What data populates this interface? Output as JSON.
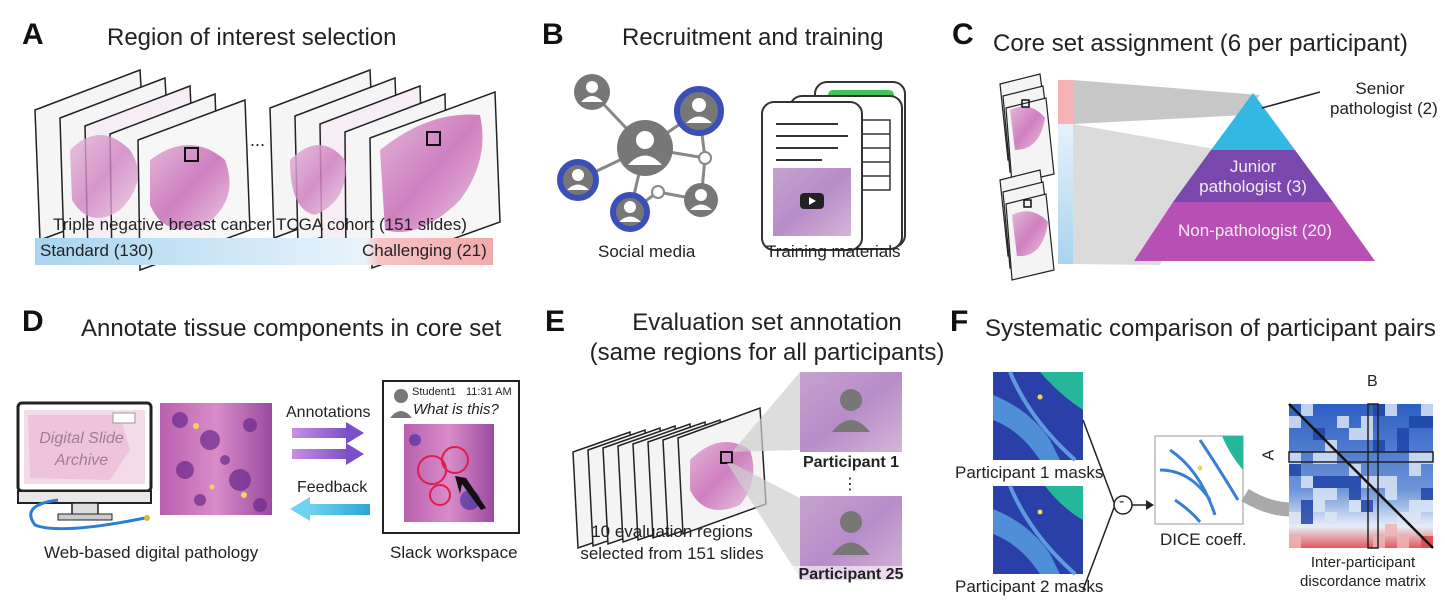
{
  "panelA": {
    "letter": "A",
    "title": "Region of interest selection",
    "ellipsis": "...",
    "cohort": "Triple negative breast cancer TCGA cohort (151 slides)",
    "standard": "Standard (130)",
    "challenging": "Challenging (21)"
  },
  "panelB": {
    "letter": "B",
    "title": "Recruitment and training",
    "social": "Social media",
    "training": "Training materials"
  },
  "panelC": {
    "letter": "C",
    "title": "Core set assignment (6 per participant)",
    "senior": [
      "Senior",
      "pathologist (2)"
    ],
    "junior": [
      "Junior",
      "pathologist (3)"
    ],
    "nonpath": "Non-pathologist (20)"
  },
  "panelD": {
    "letter": "D",
    "title": "Annotate tissue components in core set",
    "dsa": [
      "Digital Slide",
      "Archive"
    ],
    "annotations": "Annotations",
    "feedback": "Feedback",
    "web": "Web-based digital pathology",
    "student": "Student1",
    "time": "11:31 AM",
    "question": "What is this?",
    "slack": "Slack workspace"
  },
  "panelE": {
    "letter": "E",
    "title": [
      "Evaluation set annotation",
      "(same regions for all participants)"
    ],
    "p1": "Participant 1",
    "vdots": "⋮",
    "p25": "Participant 25",
    "regions": [
      "10 evaluation regions",
      "selected from 151 slides"
    ]
  },
  "panelF": {
    "letter": "F",
    "title": "Systematic comparison of participant pairs",
    "m1": "Participant 1 masks",
    "m2": "Participant 2 masks",
    "minus": "-",
    "dice": "DICE coeff.",
    "axisB": "B",
    "axisA": "A",
    "matrix": [
      "Inter-participant",
      "discordance matrix"
    ]
  }
}
